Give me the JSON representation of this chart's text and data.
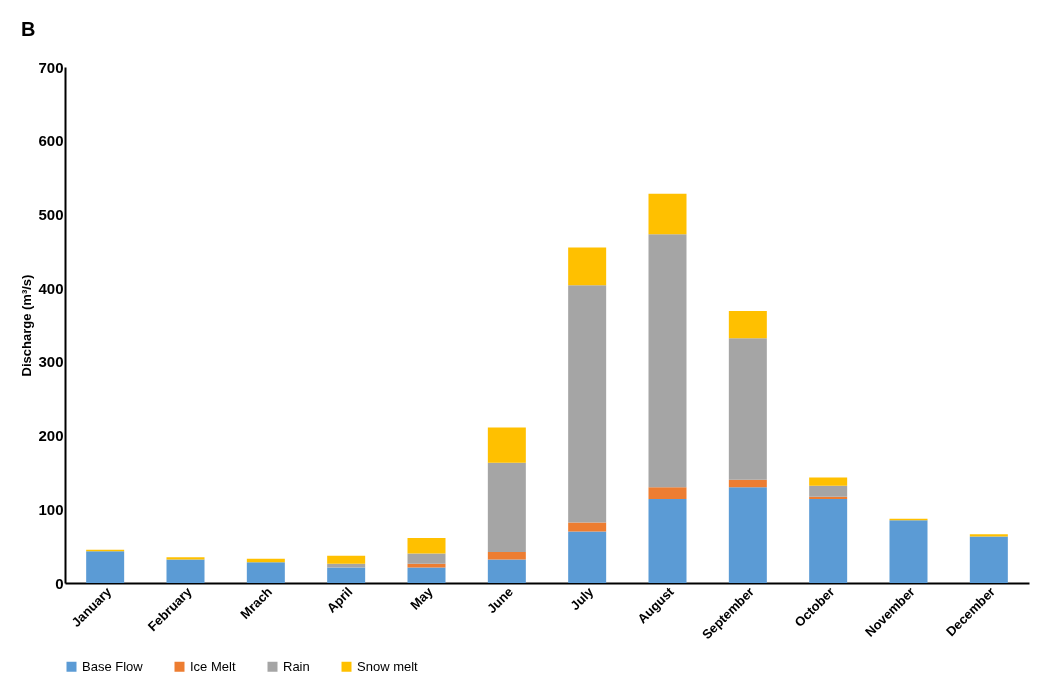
{
  "chart_data": {
    "type": "bar",
    "title": "B",
    "ylabel": "Discharge (m³/s)",
    "stacked": true,
    "legend": "bottom",
    "grid": false,
    "categories": [
      "January",
      "February",
      "Mrach",
      "April",
      "May",
      "June",
      "July",
      "August",
      "September",
      "October",
      "November",
      "December"
    ],
    "ylim": [
      0,
      700
    ],
    "yticks": [
      0,
      100,
      200,
      300,
      400,
      500,
      600,
      700
    ],
    "series": [
      {
        "name": "Base Flow",
        "color": "#5b9bd5",
        "values": [
          43,
          32,
          28,
          21,
          21,
          32,
          70,
          114,
          130,
          114,
          85,
          63
        ]
      },
      {
        "name": "Ice Melt",
        "color": "#ed7d31",
        "values": [
          0,
          0,
          0,
          0,
          5,
          10,
          12,
          16,
          10,
          3,
          0,
          0
        ]
      },
      {
        "name": "Rain",
        "color": "#a5a5a5",
        "values": [
          null,
          null,
          null,
          5,
          14,
          121,
          322,
          343,
          192,
          15,
          null,
          null
        ]
      },
      {
        "name": "Snow  melt",
        "color": "#ffc000",
        "values": [
          2,
          3,
          5,
          11,
          21,
          48,
          51,
          55,
          37,
          11,
          2,
          3
        ]
      }
    ]
  }
}
